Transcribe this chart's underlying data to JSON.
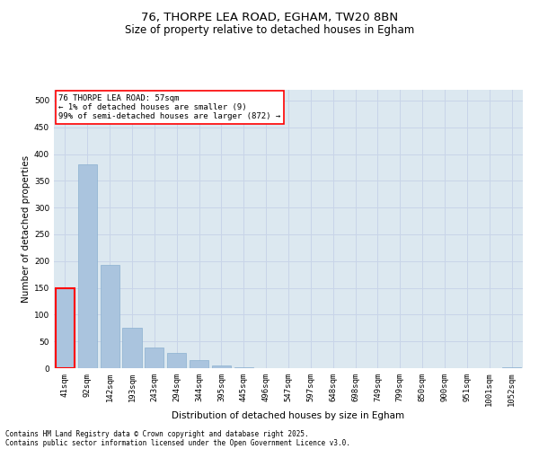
{
  "title_line1": "76, THORPE LEA ROAD, EGHAM, TW20 8BN",
  "title_line2": "Size of property relative to detached houses in Egham",
  "xlabel": "Distribution of detached houses by size in Egham",
  "ylabel": "Number of detached properties",
  "categories": [
    "41sqm",
    "92sqm",
    "142sqm",
    "193sqm",
    "243sqm",
    "294sqm",
    "344sqm",
    "395sqm",
    "445sqm",
    "496sqm",
    "547sqm",
    "597sqm",
    "648sqm",
    "698sqm",
    "749sqm",
    "799sqm",
    "850sqm",
    "900sqm",
    "951sqm",
    "1001sqm",
    "1052sqm"
  ],
  "values": [
    150,
    380,
    193,
    75,
    38,
    28,
    15,
    5,
    1,
    0,
    0,
    0,
    0,
    0,
    0,
    0,
    0,
    0,
    0,
    0,
    2
  ],
  "bar_color": "#aac4de",
  "bar_edge_color": "#8ab0d0",
  "highlight_bar_index": 0,
  "highlight_edge_color": "red",
  "annotation_text": "76 THORPE LEA ROAD: 57sqm\n← 1% of detached houses are smaller (9)\n99% of semi-detached houses are larger (872) →",
  "annotation_box_color": "white",
  "annotation_box_edge_color": "red",
  "ylim": [
    0,
    520
  ],
  "yticks": [
    0,
    50,
    100,
    150,
    200,
    250,
    300,
    350,
    400,
    450,
    500
  ],
  "grid_color": "#c8d4e8",
  "bg_color": "#dce8f0",
  "footer_line1": "Contains HM Land Registry data © Crown copyright and database right 2025.",
  "footer_line2": "Contains public sector information licensed under the Open Government Licence v3.0.",
  "title_fontsize": 9.5,
  "subtitle_fontsize": 8.5,
  "axis_label_fontsize": 7.5,
  "tick_fontsize": 6.5,
  "annotation_fontsize": 6.5,
  "footer_fontsize": 5.5
}
